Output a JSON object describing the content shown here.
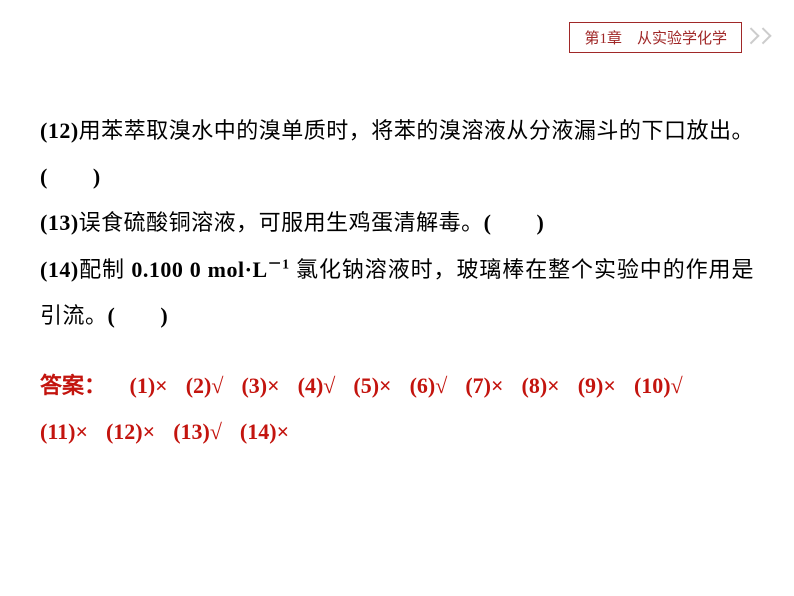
{
  "header": {
    "chapter_label": "第1章　从实验学化学",
    "header_color": "#a02828",
    "header_border": "#a02828"
  },
  "questions": {
    "q12": {
      "num": "(12)",
      "text": "用苯萃取溴水中的溴单质时，将苯的溴溶液从分液漏斗的下口放出。",
      "paren": "(　　)"
    },
    "q13": {
      "num": "(13)",
      "text": "误食硫酸铜溶液，可服用生鸡蛋清解毒。",
      "paren": "(　　)"
    },
    "q14": {
      "num": "(14)",
      "prefix": "配制 ",
      "formula": "0.100 0  mol·L",
      "exp": "－1",
      "suffix": " 氯化钠溶液时，玻璃棒在整个实验中的作用是引流。",
      "paren": "(　　)"
    }
  },
  "answers": {
    "label": "答案：",
    "color": "#c3140e",
    "items": [
      {
        "k": "(1)",
        "v": "×"
      },
      {
        "k": "(2)",
        "v": "√"
      },
      {
        "k": "(3)",
        "v": "×"
      },
      {
        "k": "(4)",
        "v": "√"
      },
      {
        "k": "(5)",
        "v": "×"
      },
      {
        "k": "(6)",
        "v": "√"
      },
      {
        "k": "(7)",
        "v": "×"
      },
      {
        "k": "(8)",
        "v": "×"
      },
      {
        "k": "(9)",
        "v": "×"
      },
      {
        "k": "(10)",
        "v": "√"
      },
      {
        "k": "(11)",
        "v": "×"
      },
      {
        "k": "(12)",
        "v": "×"
      },
      {
        "k": "(13)",
        "v": "√"
      },
      {
        "k": "(14)",
        "v": "×"
      }
    ]
  },
  "styling": {
    "body_text_color": "#000000",
    "body_fontsize": 22,
    "line_height": 2.1,
    "background": "#ffffff"
  }
}
